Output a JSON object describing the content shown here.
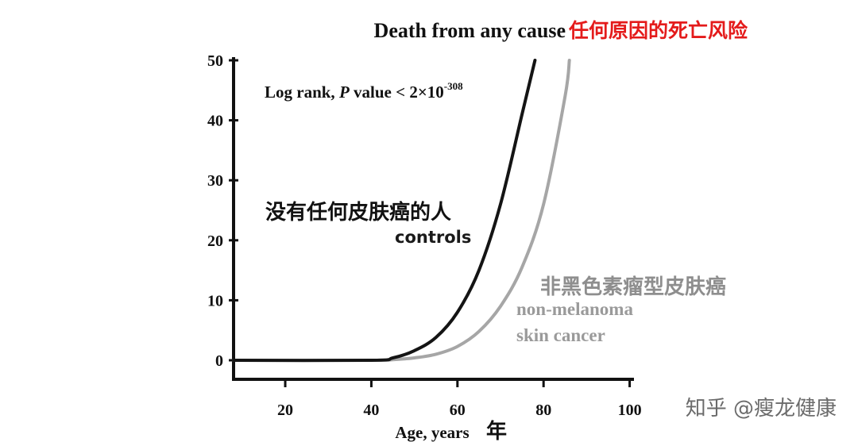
{
  "chart_data": {
    "type": "line",
    "title": "Death from any cause",
    "title_zh": "任何原因的死亡风险",
    "xlabel": "Age, years",
    "xlabel_zh": "年",
    "ylabel": "",
    "xlim": [
      8,
      101
    ],
    "ylim": [
      0,
      50
    ],
    "x_ticks": [
      20,
      40,
      60,
      80,
      100
    ],
    "y_ticks": [
      0,
      10,
      20,
      30,
      40,
      50
    ],
    "grid": false,
    "colors": {
      "controls": "#141414",
      "nmsc": "#a6a6a6",
      "title_zh": "#e41b1b"
    },
    "annotation": {
      "prefix": "Log rank, ",
      "p": "P",
      "middle": " value < 2×10",
      "exponent": "-308"
    },
    "series": [
      {
        "name": "controls",
        "name_zh": "没有任何皮肤癌的人",
        "color": "#141414",
        "x": [
          8,
          40,
          45,
          50,
          55,
          60,
          65,
          70,
          75,
          78
        ],
        "y": [
          0,
          0,
          0.4,
          1.6,
          3.8,
          8.0,
          15.0,
          26.0,
          41.0,
          50.0
        ]
      },
      {
        "name": "non-melanoma skin cancer",
        "name_line1": "non-melanoma",
        "name_line2": "skin cancer",
        "name_zh": "非黑色素瘤型皮肤癌",
        "color": "#a6a6a6",
        "x": [
          8,
          40,
          45,
          50,
          55,
          60,
          65,
          70,
          75,
          80,
          85,
          86
        ],
        "y": [
          0,
          0,
          0.1,
          0.4,
          1.0,
          2.3,
          4.8,
          9.0,
          15.5,
          26.0,
          44.0,
          50.0
        ]
      }
    ]
  },
  "watermark": "知乎 @瘦龙健康"
}
